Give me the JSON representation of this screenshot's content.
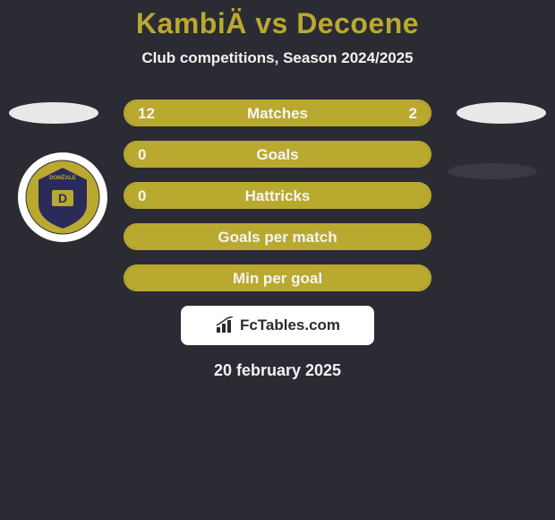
{
  "colors": {
    "page_bg": "#2b2b33",
    "title_color": "#b9a92f",
    "subtitle_color": "#f2f2f2",
    "avatar_bg": "#e9e9e9",
    "bar_bg": "#5b5b52",
    "bar_border": "#b9a92f",
    "bar_fill": "#b9a92f",
    "bar_text": "#f5f5f5",
    "logo_bg": "#ffffff",
    "logo_text": "#2b2b2b",
    "date_color": "#f2f2f2",
    "shadow": "#3a3a42",
    "badge_ring": "#b9a92f",
    "badge_inner": "#2b2b5a"
  },
  "header": {
    "title": "KambiÄ vs Decoene",
    "subtitle": "Club competitions, Season 2024/2025"
  },
  "stats": [
    {
      "label": "Matches",
      "left_val": "12",
      "right_val": "2",
      "left_pct": 80,
      "right_pct": 20,
      "show_vals": true
    },
    {
      "label": "Goals",
      "left_val": "0",
      "right_val": "",
      "left_pct": 100,
      "right_pct": 0,
      "show_vals": true
    },
    {
      "label": "Hattricks",
      "left_val": "0",
      "right_val": "",
      "left_pct": 100,
      "right_pct": 0,
      "show_vals": true
    },
    {
      "label": "Goals per match",
      "left_val": "",
      "right_val": "",
      "left_pct": 100,
      "right_pct": 0,
      "show_vals": false
    },
    {
      "label": "Min per goal",
      "left_val": "",
      "right_val": "",
      "left_pct": 100,
      "right_pct": 0,
      "show_vals": false
    }
  ],
  "logo_text": "FcTables.com",
  "date": "20 february 2025"
}
